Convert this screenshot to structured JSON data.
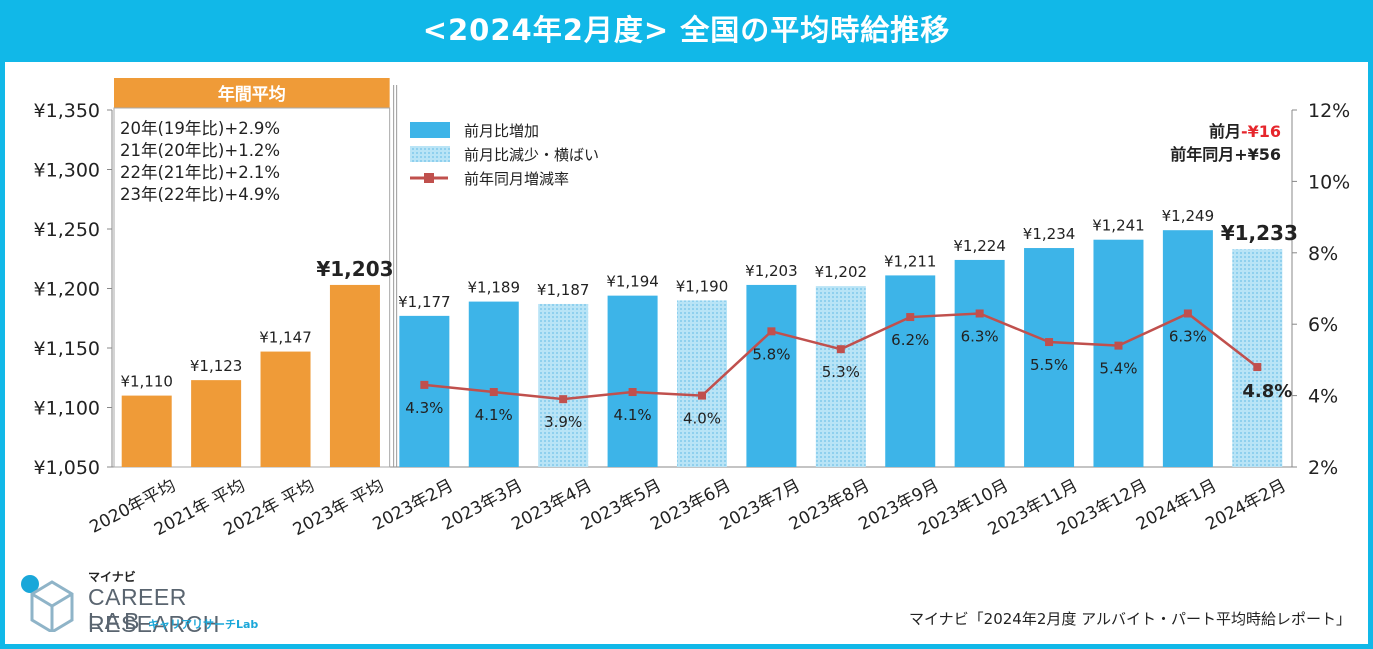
{
  "title": "<2024年2月度> 全国の平均時給推移",
  "annual_box": {
    "header": "年間平均",
    "lines": [
      "20年(19年比)+2.9%",
      "21年(20年比)+1.2%",
      "22年(21年比)+2.1%",
      "23年(22年比)+4.9%"
    ]
  },
  "summary": {
    "prev_month_prefix": "前月",
    "prev_month_value": "-¥16",
    "prev_year": "前年同月+¥56"
  },
  "colors": {
    "title_bg": "#11b8e8",
    "annual_bar": "#ef9b38",
    "increase_bar": "#3db4e8",
    "decrease_bar": "#a8dcf3",
    "line": "#c0504d",
    "highlight_text": "#e6262c"
  },
  "chart_data": {
    "type": "bar+line",
    "categories": [
      "2020年平均",
      "2021年 平均",
      "2022年 平均",
      "2023年 平均",
      "2023年2月",
      "2023年3月",
      "2023年4月",
      "2023年5月",
      "2023年6月",
      "2023年7月",
      "2023年8月",
      "2023年9月",
      "2023年10月",
      "2023年11月",
      "2023年12月",
      "2024年1月",
      "2024年2月"
    ],
    "bar_values": [
      1110,
      1123,
      1147,
      1203,
      1177,
      1189,
      1187,
      1194,
      1190,
      1203,
      1202,
      1211,
      1224,
      1234,
      1241,
      1249,
      1233
    ],
    "bar_labels": [
      "¥1,110",
      "¥1,123",
      "¥1,147",
      "¥1,203",
      "¥1,177",
      "¥1,189",
      "¥1,187",
      "¥1,194",
      "¥1,190",
      "¥1,203",
      "¥1,202",
      "¥1,211",
      "¥1,224",
      "¥1,234",
      "¥1,241",
      "¥1,249",
      "¥1,233"
    ],
    "bar_kind": [
      "annual",
      "annual",
      "annual",
      "annual",
      "increase",
      "increase",
      "decrease",
      "increase",
      "decrease",
      "increase",
      "decrease",
      "increase",
      "increase",
      "increase",
      "increase",
      "increase",
      "decrease"
    ],
    "bold_label_index": [
      3,
      16
    ],
    "line_values": [
      null,
      null,
      null,
      null,
      4.3,
      4.1,
      3.9,
      4.1,
      4.0,
      5.8,
      5.3,
      6.2,
      6.3,
      5.5,
      5.4,
      6.3,
      4.8
    ],
    "line_labels": [
      "",
      "",
      "",
      "",
      "4.3%",
      "4.1%",
      "3.9%",
      "4.1%",
      "4.0%",
      "5.8%",
      "5.3%",
      "6.2%",
      "6.3%",
      "5.5%",
      "5.4%",
      "6.3%",
      "4.8%"
    ],
    "y_left": {
      "min": 1050,
      "max": 1350,
      "ticks": [
        1050,
        1100,
        1150,
        1200,
        1250,
        1300,
        1350
      ],
      "tick_labels": [
        "¥1,050",
        "¥1,100",
        "¥1,150",
        "¥1,200",
        "¥1,250",
        "¥1,300",
        "¥1,350"
      ]
    },
    "y_right": {
      "min": 2,
      "max": 12,
      "ticks": [
        2,
        4,
        6,
        8,
        10,
        12
      ],
      "tick_labels": [
        "2%",
        "4%",
        "6%",
        "8%",
        "10%",
        "12%"
      ]
    },
    "legend": [
      {
        "kind": "increase",
        "label": "前月比増加"
      },
      {
        "kind": "decrease",
        "label": "前月比減少・横ばい"
      },
      {
        "kind": "line",
        "label": "前年同月増減率"
      }
    ]
  },
  "logo": {
    "brand": "マイナビ",
    "main": "CAREER RESEARCH",
    "lab": "LAB",
    "kana": "キャリアリサーチLab"
  },
  "source": "マイナビ「2024年2月度 アルバイト・パート平均時給レポート」"
}
